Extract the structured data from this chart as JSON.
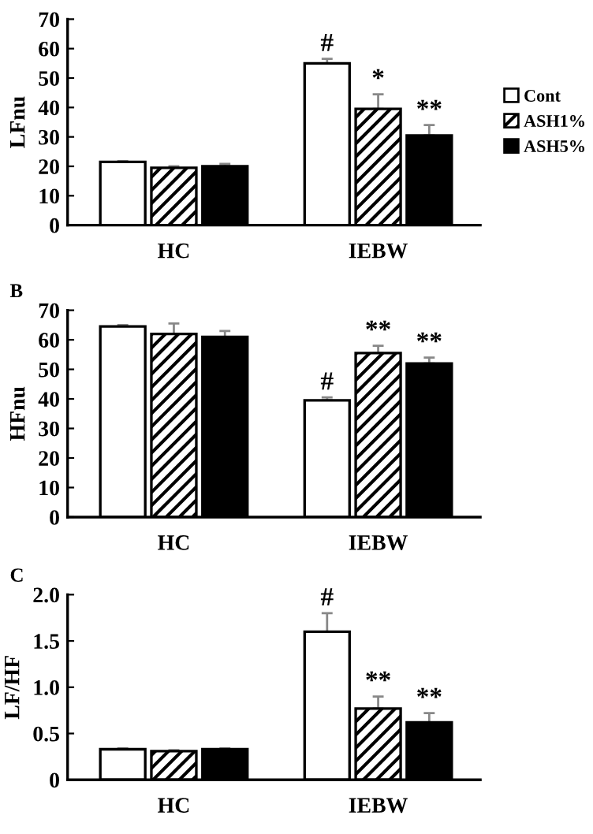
{
  "chart_data": [
    {
      "type": "bar",
      "ylabel": "LFnu",
      "categories": [
        "HC",
        "IEBW"
      ],
      "ylim": [
        0,
        70
      ],
      "yticks": [
        0,
        10,
        20,
        30,
        40,
        50,
        60,
        70
      ],
      "grid": false,
      "legend": "right",
      "series": [
        {
          "name": "Cont",
          "color": "#ffffff",
          "values": [
            21.5,
            55
          ],
          "errors": [
            0.3,
            1.5
          ]
        },
        {
          "name": "ASH1%",
          "color": "#000000",
          "values": [
            19.5,
            39.5
          ],
          "errors": [
            0.5,
            5
          ]
        },
        {
          "name": "ASH5%",
          "color": "#000000",
          "values": [
            20,
            30.5
          ],
          "errors": [
            0.8,
            3.5
          ]
        }
      ],
      "annotations": [
        "#",
        "*",
        "**"
      ]
    },
    {
      "type": "bar",
      "title": "B",
      "ylabel": "HFnu",
      "categories": [
        "HC",
        "IEBW"
      ],
      "ylim": [
        0,
        70
      ],
      "yticks": [
        0,
        10,
        20,
        30,
        40,
        50,
        60,
        70
      ],
      "grid": false,
      "legend": false,
      "series": [
        {
          "color": "#ffffff",
          "values": [
            64.5,
            39.5
          ],
          "errors": [
            0.5,
            1
          ]
        },
        {
          "color": "#000000",
          "values": [
            62,
            55.5
          ],
          "errors": [
            3.5,
            2.5
          ]
        },
        {
          "color": "#000000",
          "values": [
            61,
            52
          ],
          "errors": [
            2,
            2
          ]
        }
      ],
      "annotations": [
        "#",
        "**",
        "**"
      ]
    },
    {
      "type": "bar",
      "title": "C",
      "ylabel": "LF/HF",
      "categories": [
        "HC",
        "IEBW"
      ],
      "ylim": [
        0,
        2.0
      ],
      "yticks": [
        0,
        {
          "value": 0.5,
          "label": "0.5"
        },
        {
          "value": 1.0,
          "label": "1.0"
        },
        {
          "value": 1.5,
          "label": "1.5"
        },
        {
          "value": 2.0,
          "label": "2.0"
        }
      ],
      "grid": false,
      "legend": false,
      "series": [
        {
          "color": "#ffffff",
          "values": [
            0.33,
            1.6
          ],
          "errors": [
            0.01,
            0.2
          ]
        },
        {
          "color": "#000000",
          "values": [
            0.31,
            0.77
          ],
          "errors": [
            0.01,
            0.13
          ]
        },
        {
          "color": "#000000",
          "values": [
            0.33,
            0.62
          ],
          "errors": [
            0.01,
            0.1
          ]
        }
      ],
      "annotations": [
        "#",
        "**",
        "**"
      ]
    }
  ]
}
